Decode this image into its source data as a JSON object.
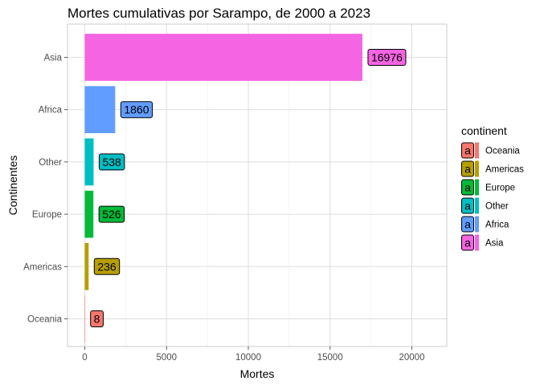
{
  "chart_data": {
    "type": "bar",
    "orientation": "horizontal",
    "title": "Mortes cumulativas por Sarampo, de 2000 a 2023",
    "xlabel": "Mortes",
    "ylabel": "Continentes",
    "categories": [
      "Oceania",
      "Americas",
      "Europe",
      "Other",
      "Africa",
      "Asia"
    ],
    "values": [
      8,
      236,
      526,
      538,
      1860,
      16976
    ],
    "colors": [
      "#F8766D",
      "#B79F00",
      "#00BA38",
      "#00BFC4",
      "#619CFF",
      "#F564E3"
    ],
    "xlim": [
      0,
      22000
    ],
    "xticks": [
      0,
      5000,
      10000,
      15000,
      20000
    ],
    "xticks_labels": [
      "0",
      "5000",
      "10000",
      "15000",
      "20000"
    ],
    "grid": true,
    "legend": {
      "title": "continent",
      "position": "right",
      "key_glyph": "a",
      "entries": [
        "Oceania",
        "Americas",
        "Europe",
        "Other",
        "Africa",
        "Asia"
      ]
    }
  }
}
